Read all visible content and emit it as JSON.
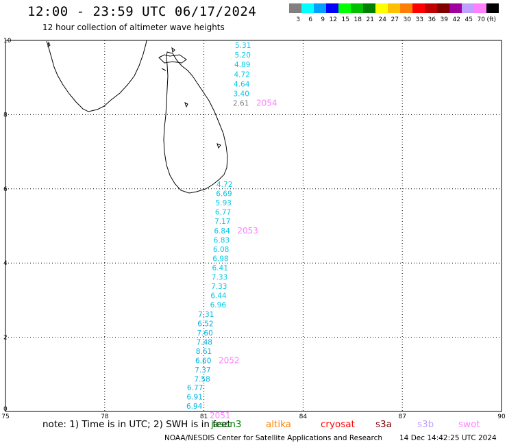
{
  "header": {
    "title": "12:00 - 23:59 UTC 06/17/2024",
    "subtitle": "12 hour collection of altimeter wave heights"
  },
  "colorbar": {
    "unit": "(ft)",
    "bins": [
      {
        "label": "3",
        "color": "#808080"
      },
      {
        "label": "6",
        "color": "#00ffff"
      },
      {
        "label": "9",
        "color": "#00a0ff"
      },
      {
        "label": "12",
        "color": "#0000ff"
      },
      {
        "label": "15",
        "color": "#00ff00"
      },
      {
        "label": "18",
        "color": "#00c000"
      },
      {
        "label": "21",
        "color": "#008000"
      },
      {
        "label": "24",
        "color": "#ffff00"
      },
      {
        "label": "27",
        "color": "#ffc000"
      },
      {
        "label": "30",
        "color": "#ff8000"
      },
      {
        "label": "33",
        "color": "#ff0000"
      },
      {
        "label": "36",
        "color": "#c00000"
      },
      {
        "label": "39",
        "color": "#800000"
      },
      {
        "label": "42",
        "color": "#a000a0"
      },
      {
        "label": "45",
        "color": "#c0a0ff"
      },
      {
        "label": "70",
        "color": "#ff80ff"
      },
      {
        "label": "",
        "color": "#000000"
      }
    ]
  },
  "map": {
    "lon_range": [
      75,
      90
    ],
    "lat_range": [
      0,
      10
    ],
    "lon_ticks": [
      "75",
      "78",
      "81",
      "84",
      "87",
      "90"
    ],
    "lat_ticks": [
      "0",
      "2",
      "4",
      "6",
      "8",
      "10"
    ],
    "grid": "dotted"
  },
  "tracks": [
    {
      "id": "2054",
      "label_color": "#ff80ff",
      "observations": [
        {
          "value": "5.31",
          "color": "#00c8e8"
        },
        {
          "value": "5.20",
          "color": "#00c8e8"
        },
        {
          "value": "4.89",
          "color": "#00c8e8"
        },
        {
          "value": "4.72",
          "color": "#00c8e8"
        },
        {
          "value": "4.64",
          "color": "#00c8e8"
        },
        {
          "value": "3.40",
          "color": "#00c8e8"
        },
        {
          "value": "2.61",
          "color": "#808080"
        }
      ]
    },
    {
      "id": "2053",
      "label_color": "#ff80ff",
      "observations": [
        {
          "value": "4.72",
          "color": "#00c8e8"
        },
        {
          "value": "6.69",
          "color": "#00c8e8"
        },
        {
          "value": "5.93",
          "color": "#00c8e8"
        },
        {
          "value": "6.77",
          "color": "#00c8e8"
        },
        {
          "value": "7.17",
          "color": "#00c8e8"
        },
        {
          "value": "6.84",
          "color": "#00c8e8"
        },
        {
          "value": "6.83",
          "color": "#00c8e8"
        },
        {
          "value": "6.08",
          "color": "#00c8e8"
        },
        {
          "value": "6.98",
          "color": "#00c8e8"
        },
        {
          "value": "6.41",
          "color": "#00c8e8"
        },
        {
          "value": "7.33",
          "color": "#00c8e8"
        },
        {
          "value": "7.33",
          "color": "#00c8e8"
        },
        {
          "value": "6.44",
          "color": "#00c8e8"
        },
        {
          "value": "6.96",
          "color": "#00c8e8"
        }
      ]
    },
    {
      "id": "2052",
      "label_color": "#ff80ff",
      "observations": [
        {
          "value": "7.31",
          "color": "#00b0e0"
        },
        {
          "value": "6.52",
          "color": "#00b0e0"
        },
        {
          "value": "7.60",
          "color": "#00b0e0"
        },
        {
          "value": "7.48",
          "color": "#00b0e0"
        },
        {
          "value": "8.61",
          "color": "#00b0e0"
        },
        {
          "value": "6.60",
          "color": "#00b0e0"
        },
        {
          "value": "7.37",
          "color": "#00b0e0"
        },
        {
          "value": "7.58",
          "color": "#00b0e0"
        }
      ]
    },
    {
      "id": "2051",
      "label_color": "#ff80ff",
      "observations": [
        {
          "value": "6.77",
          "color": "#00b0e0"
        },
        {
          "value": "6.91",
          "color": "#00b0e0"
        },
        {
          "value": "6.94",
          "color": "#00b0e0"
        }
      ]
    }
  ],
  "footer": {
    "note": "note: 1) Time is in UTC; 2) SWH is in feet",
    "satellites": [
      {
        "name": "jason3",
        "color": "#008000"
      },
      {
        "name": "altika",
        "color": "#ff8000"
      },
      {
        "name": "cryosat",
        "color": "#ff0000"
      },
      {
        "name": "s3a",
        "color": "#800000"
      },
      {
        "name": "s3b",
        "color": "#c0a0ff"
      },
      {
        "name": "swot",
        "color": "#ff80ff"
      }
    ],
    "credit": "NOAA/NESDIS Center for Satellite Applications and Research",
    "timestamp": "14 Dec 14:42:25 UTC 2024"
  }
}
